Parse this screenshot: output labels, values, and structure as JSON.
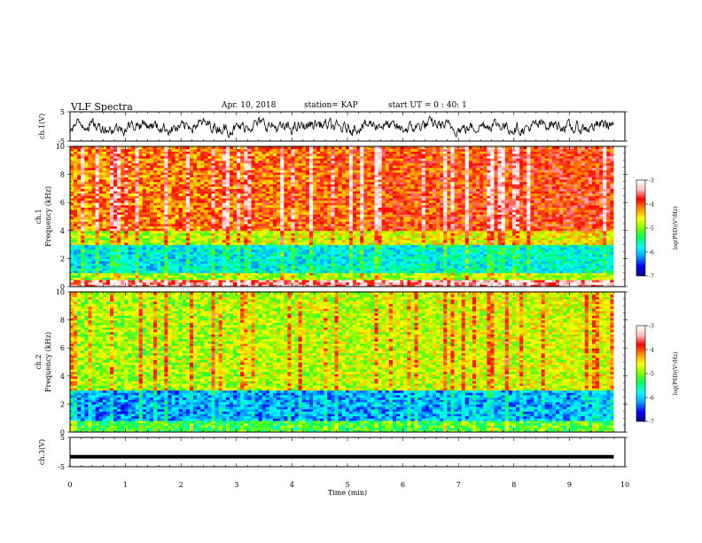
{
  "header": {
    "title": "VLF Spectra",
    "date": "Apr. 10, 2018",
    "station": "station= KAP",
    "start": "start  UT  =   0 : 40: 1"
  },
  "colorbar": {
    "label": "log(PSD)(V²/Hz)",
    "ticks": [
      -3,
      -4,
      -5,
      -6,
      -7
    ],
    "colors": [
      "#000080",
      "#0000ff",
      "#00a0ff",
      "#00ffff",
      "#00ff60",
      "#80ff00",
      "#ffff00",
      "#ff9000",
      "#ff0000",
      "#ffc0c0",
      "#ffffff"
    ]
  },
  "chart_data": [
    {
      "type": "line",
      "ylabel": "ch.1(V)",
      "ylim": [
        -5,
        5
      ],
      "yticks": [
        5,
        -5
      ],
      "xlim": [
        0,
        10
      ],
      "note": "noisy waveform between about -3 and 3 V across 0 to 9.8 min"
    },
    {
      "type": "heatmap",
      "ylabel": "ch.1\nFrequency  (kHz)",
      "ylim": [
        0,
        10
      ],
      "yticks": [
        0,
        2,
        4,
        6,
        8,
        10
      ],
      "xlim": [
        0,
        9.8
      ],
      "scale": "log(PSD)(V²/Hz)",
      "zlim": [
        -7,
        -3
      ],
      "bands": [
        {
          "from": 0.0,
          "to": 0.5,
          "level": -3.6
        },
        {
          "from": 0.5,
          "to": 1.0,
          "level": -5.0
        },
        {
          "from": 1.0,
          "to": 3.0,
          "level": -5.9
        },
        {
          "from": 3.0,
          "to": 4.0,
          "level": -4.9
        },
        {
          "from": 4.0,
          "to": 10.0,
          "level": -4.2
        }
      ]
    },
    {
      "type": "heatmap",
      "ylabel": "ch.2\nFrequency  (kHz)",
      "ylim": [
        0,
        10
      ],
      "yticks": [
        0,
        2,
        4,
        6,
        8,
        10
      ],
      "xlim": [
        0,
        9.8
      ],
      "scale": "log(PSD)(V²/Hz)",
      "zlim": [
        -7,
        -3
      ],
      "bands": [
        {
          "from": 0.0,
          "to": 0.8,
          "level": -5.3
        },
        {
          "from": 0.8,
          "to": 3.0,
          "level": -6.2
        },
        {
          "from": 3.0,
          "to": 10.0,
          "level": -4.9
        }
      ]
    },
    {
      "type": "line",
      "ylabel": "ch.3(V)",
      "ylim": [
        -5,
        5
      ],
      "yticks": [
        5,
        -5
      ],
      "xlim": [
        0,
        10
      ],
      "values_constant": -1.6,
      "note": "flat thick line near -1.6 V"
    }
  ],
  "xaxis": {
    "label": "Time  (min)",
    "ticks": [
      0,
      1,
      2,
      3,
      4,
      5,
      6,
      7,
      8,
      9,
      10
    ]
  }
}
